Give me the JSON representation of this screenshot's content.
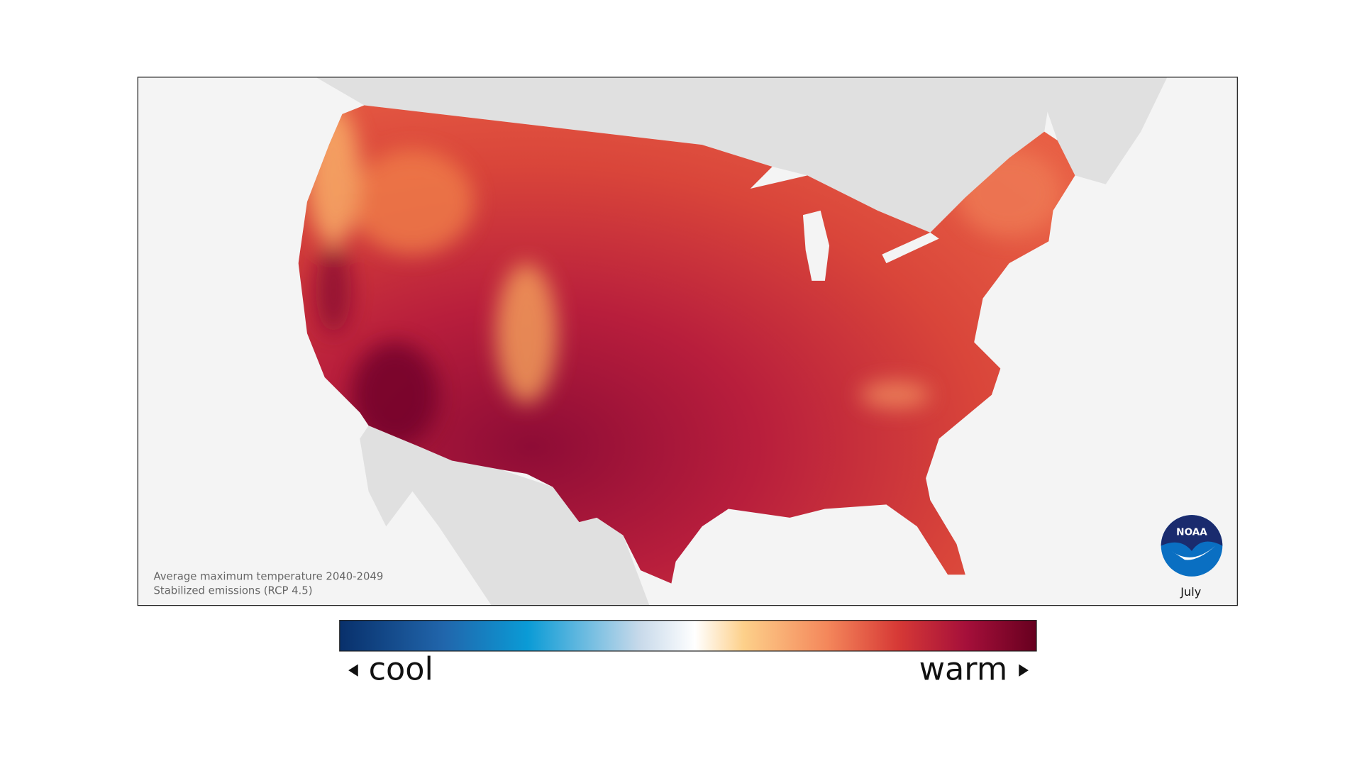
{
  "map": {
    "caption": [
      "Average maximum temperature 2040-2049",
      "Stabilized emissions (RCP 4.5)"
    ],
    "month": "July",
    "logo": "NOAA",
    "legend": {
      "low": "cool",
      "high": "warm"
    }
  }
}
